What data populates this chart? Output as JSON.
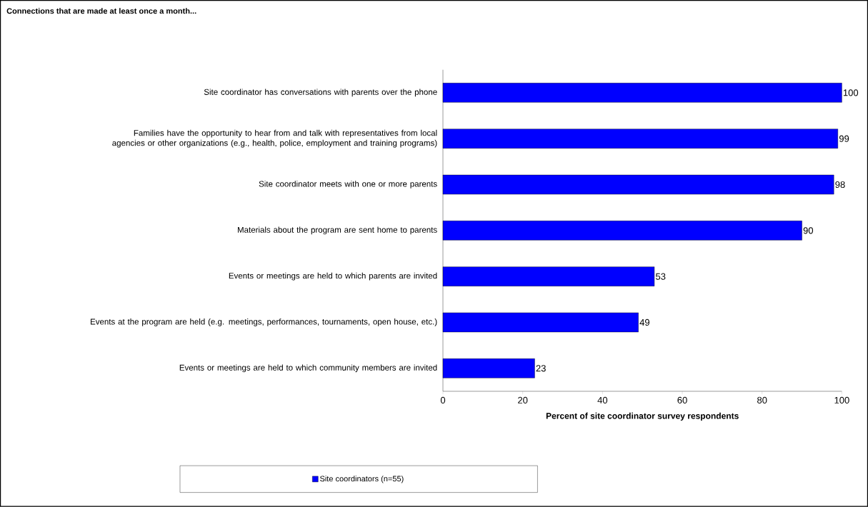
{
  "chart_data": {
    "type": "bar",
    "orientation": "horizontal",
    "title": "Connections that are made at least once a month...",
    "categories": [
      "Site coordinator has conversations with parents over the phone",
      "Families have the opportunity to hear from and talk with representatives from local agencies or other organizations (e.g., health, police, employment and training programs)",
      "Site coordinator meets with one or more parents",
      "Materials about the program are sent home to parents",
      "Events or meetings are held to which parents are invited",
      "Events at the program are held (e.g. meetings, performances, tournaments, open house, etc.)",
      "Events or meetings are held to which community members are invited"
    ],
    "series": [
      {
        "name": "Site coordinators (n=55)",
        "color": "#0000ff",
        "values": [
          100,
          99,
          98,
          90,
          53,
          49,
          23
        ]
      }
    ],
    "xlabel": "Percent of site coordinator survey respondents",
    "xlim": [
      0,
      100
    ],
    "xticks": [
      0,
      20,
      40,
      60,
      80,
      100
    ],
    "data_labels": true,
    "legend": "bottom"
  }
}
